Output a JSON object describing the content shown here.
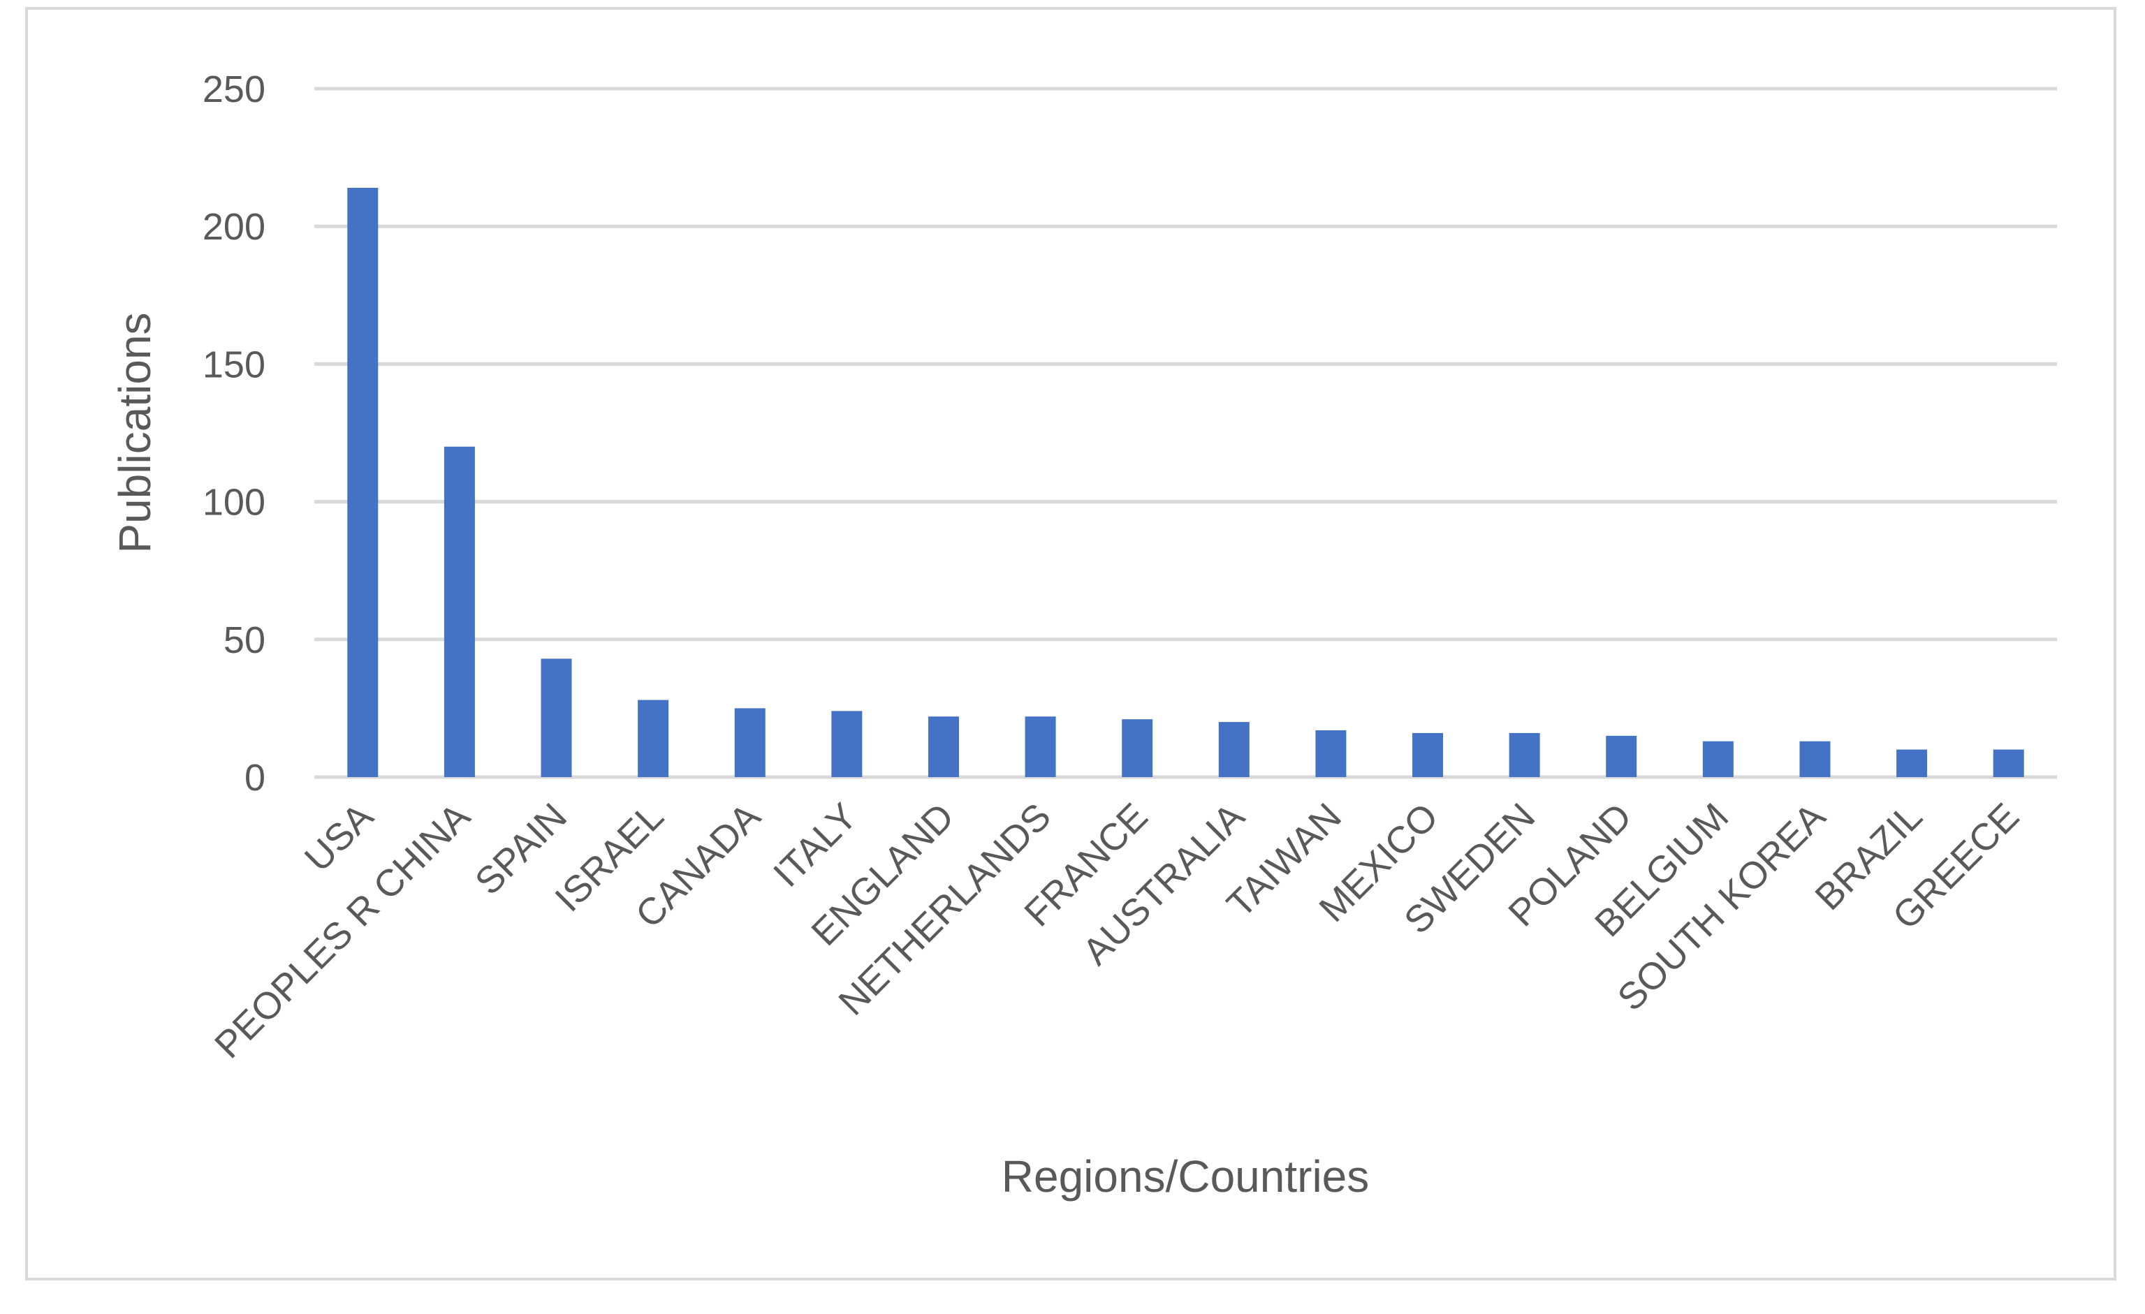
{
  "chart_data": {
    "type": "bar",
    "title": "",
    "xlabel": "Regions/Countries",
    "ylabel": "Publications",
    "ylim": [
      0,
      250
    ],
    "yticks": [
      0,
      50,
      100,
      150,
      200,
      250
    ],
    "grid": true,
    "legend": "none",
    "bar_color": "#4472c4",
    "categories": [
      "USA",
      "PEOPLES R CHINA",
      "SPAIN",
      "ISRAEL",
      "CANADA",
      "ITALY",
      "ENGLAND",
      "NETHERLANDS",
      "FRANCE",
      "AUSTRALIA",
      "TAIWAN",
      "MEXICO",
      "SWEDEN",
      "POLAND",
      "BELGIUM",
      "SOUTH KOREA",
      "BRAZIL",
      "GREECE"
    ],
    "values": [
      214,
      120,
      43,
      28,
      25,
      24,
      22,
      22,
      21,
      20,
      17,
      16,
      16,
      15,
      13,
      13,
      10,
      10
    ]
  }
}
